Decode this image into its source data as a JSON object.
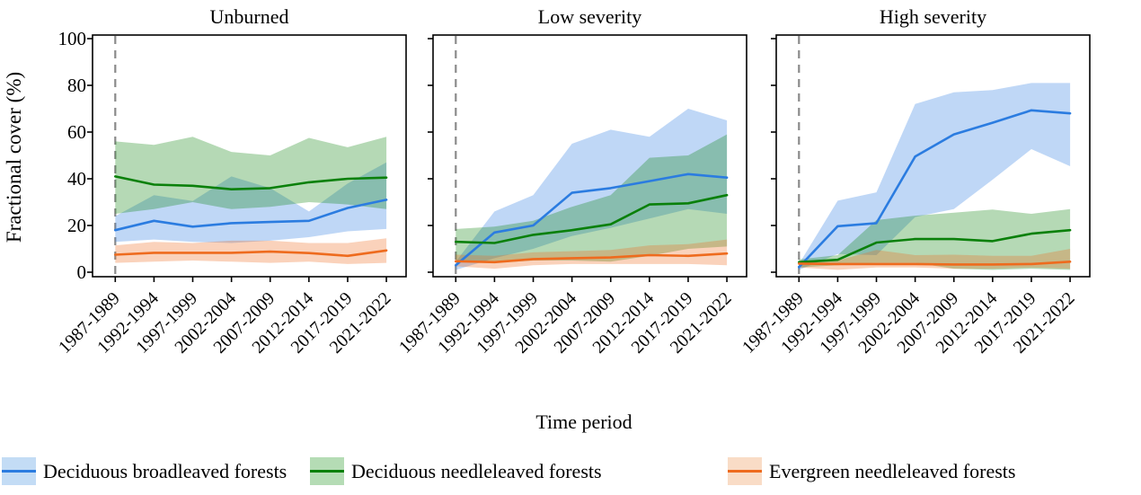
{
  "figure_type": "faceted-line-chart-with-confidence-bands",
  "chart_data": {
    "type": "line",
    "xlabel": "Time period",
    "ylabel": "Fractional cover (%)",
    "ylim": [
      0,
      100
    ],
    "y_ticks": [
      0,
      20,
      40,
      60,
      80,
      100
    ],
    "grid": "off",
    "legend_position": "bottom",
    "categories": [
      "1987-1989",
      "1992-1994",
      "1997-1999",
      "2002-2004",
      "2007-2009",
      "2012-2014",
      "2017-2019",
      "2021-2022"
    ],
    "annotations": {
      "dashed_vertical_line_at_category": "1987-1989",
      "dashed_line_color": "#8a8a8a"
    },
    "panels": [
      {
        "title": "Unburned",
        "series": [
          {
            "name": "Deciduous broadleaved forests",
            "color": "#2b7ce0",
            "mean": [
              18,
              22,
              19.5,
              21,
              21.5,
              22,
              27.5,
              31
            ],
            "lower": [
              13,
              14,
              13,
              12.5,
              13.5,
              15,
              17.5,
              18.5
            ],
            "upper": [
              24,
              33,
              30.5,
              41,
              36,
              26,
              38,
              47
            ]
          },
          {
            "name": "Deciduous needleleaved forests",
            "color": "#0a800a",
            "mean": [
              41,
              37.5,
              37,
              35.5,
              36,
              38.5,
              40,
              40.5
            ],
            "lower": [
              25,
              27,
              30,
              27,
              28,
              30,
              29,
              27
            ],
            "upper": [
              56,
              54.5,
              58,
              51.5,
              50,
              57.5,
              53.5,
              58
            ]
          },
          {
            "name": "Evergreen needleleaved forests",
            "color": "#ee6b1e",
            "mean": [
              7.5,
              8.3,
              8.3,
              8.3,
              8.8,
              8.2,
              7,
              9.3
            ],
            "lower": [
              4,
              4.5,
              5,
              4.5,
              4,
              4.5,
              3.5,
              4
            ],
            "upper": [
              11.5,
              13,
              12.5,
              13.5,
              13.5,
              12.5,
              12.5,
              14.5
            ]
          }
        ]
      },
      {
        "title": "Low severity",
        "series": [
          {
            "name": "Deciduous broadleaved forests",
            "color": "#2b7ce0",
            "mean": [
              3,
              17,
              20,
              34,
              36,
              39,
              42,
              40.5
            ],
            "lower": [
              1,
              6,
              10,
              15.5,
              19,
              23,
              27,
              25
            ],
            "upper": [
              4.5,
              26,
              33,
              55,
              61,
              58,
              70,
              65
            ]
          },
          {
            "name": "Deciduous needleleaved forests",
            "color": "#0a800a",
            "mean": [
              13,
              12.5,
              16,
              18,
              20.5,
              29,
              29.5,
              33
            ],
            "lower": [
              5,
              4,
              5,
              5,
              4.5,
              7,
              10,
              11
            ],
            "upper": [
              18.5,
              19.5,
              22,
              28,
              33,
              49,
              50,
              59
            ]
          },
          {
            "name": "Evergreen needleleaved forests",
            "color": "#ee6b1e",
            "mean": [
              4.7,
              4.3,
              5.6,
              6,
              6.3,
              7.3,
              7,
              8
            ],
            "lower": [
              2.5,
              1.5,
              3,
              3.5,
              3.5,
              3.5,
              3.5,
              3
            ],
            "upper": [
              7.5,
              7,
              8.5,
              9,
              9.5,
              11.5,
              12,
              14
            ]
          }
        ]
      },
      {
        "title": "High severity",
        "series": [
          {
            "name": "Deciduous broadleaved forests",
            "color": "#2b7ce0",
            "mean": [
              2.2,
              19.7,
              21,
              49.5,
              59,
              64,
              69.3,
              68
            ],
            "lower": [
              1,
              7.8,
              7.3,
              23.6,
              27,
              39.6,
              52.7,
              45.4
            ],
            "upper": [
              3.5,
              30.6,
              34.2,
              72,
              77,
              78,
              81,
              81
            ]
          },
          {
            "name": "Deciduous needleleaved forests",
            "color": "#0a800a",
            "mean": [
              4.3,
              5.3,
              12.7,
              14.2,
              14.2,
              13.3,
              16.5,
              18
            ],
            "lower": [
              2,
              3,
              4,
              4,
              1.5,
              1,
              1.5,
              1
            ],
            "upper": [
              5.5,
              7.3,
              22.3,
              24.2,
              25.5,
              26.8,
              25,
              27
            ]
          },
          {
            "name": "Evergreen needleleaved forests",
            "color": "#ee6b1e",
            "mean": [
              3.7,
              3.5,
              3.5,
              3.5,
              3.3,
              3.3,
              3.5,
              4.5
            ],
            "lower": [
              2,
              1,
              2,
              2,
              1.5,
              1.5,
              2,
              1.5
            ],
            "upper": [
              5,
              5,
              9.5,
              7.3,
              7.5,
              7,
              7,
              10
            ]
          }
        ]
      }
    ]
  },
  "legend": {
    "items": [
      {
        "label": "Deciduous broadleaved forests",
        "line_color": "#2b7ce0",
        "band_color": "#c3dcf5"
      },
      {
        "label": "Deciduous needleleaved forests",
        "line_color": "#0a800a",
        "band_color": "#b5dcb5"
      },
      {
        "label": "Evergreen needleleaved forests",
        "line_color": "#ee6b1e",
        "band_color": "#f9dcc6"
      }
    ]
  }
}
